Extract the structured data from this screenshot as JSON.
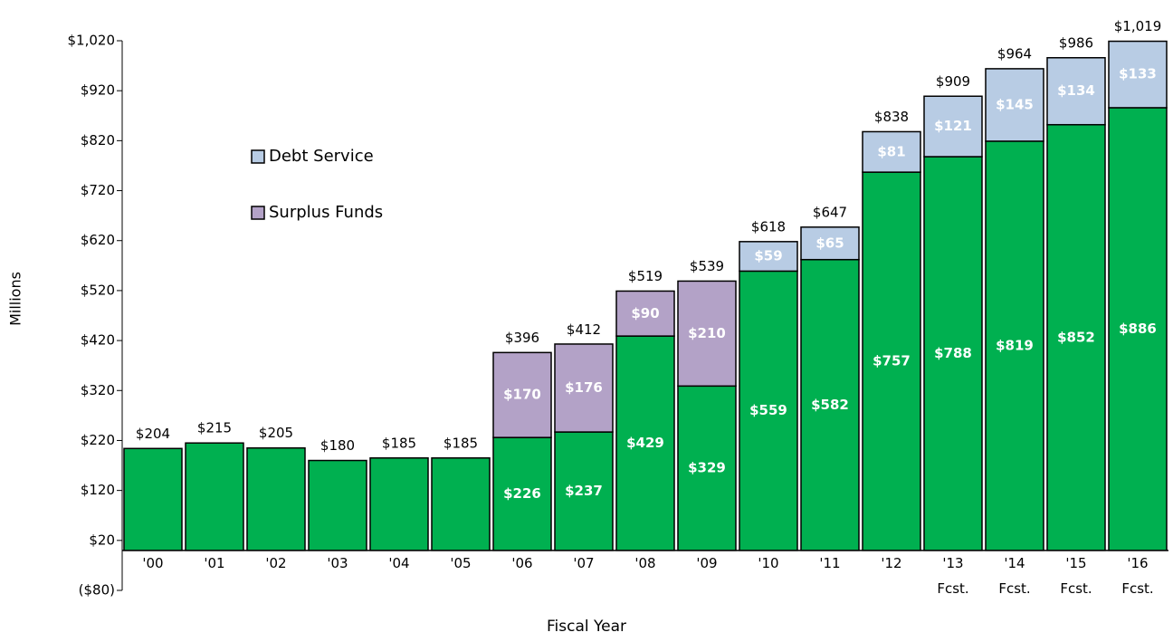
{
  "chart_data": {
    "type": "stacked_bar",
    "xlabel": "Fiscal Year",
    "ylabel": "Millions",
    "categories": [
      "'00",
      "'01",
      "'02",
      "'03",
      "'04",
      "'05",
      "'06",
      "'07",
      "'08",
      "'09",
      "'10",
      "'11",
      "'12",
      "'13\nFcst.",
      "'14\nFcst.",
      "'15\nFcst.",
      "'16\nFcst."
    ],
    "series": [
      {
        "color": "#00b050",
        "values": [
          204,
          215,
          205,
          180,
          185,
          185,
          226,
          237,
          429,
          329,
          559,
          582,
          757,
          788,
          819,
          852,
          886
        ],
        "value_labels": [
          null,
          null,
          null,
          null,
          null,
          null,
          "$226",
          "$237",
          "$429",
          "$329",
          "$559",
          "$582",
          "$757",
          "$788",
          "$819",
          "$852",
          "$886"
        ]
      },
      {
        "name": "Surplus Funds",
        "color": "#b3a2c7",
        "values": [
          null,
          null,
          null,
          null,
          null,
          null,
          170,
          176,
          90,
          210,
          null,
          null,
          null,
          null,
          null,
          null,
          null
        ],
        "value_labels": [
          null,
          null,
          null,
          null,
          null,
          null,
          "$170",
          "$176",
          "$90",
          "$210",
          null,
          null,
          null,
          null,
          null,
          null,
          null
        ]
      },
      {
        "name": "Debt Service",
        "color": "#b8cce4",
        "values": [
          null,
          null,
          null,
          null,
          null,
          null,
          null,
          null,
          null,
          null,
          59,
          65,
          81,
          121,
          145,
          134,
          133
        ],
        "value_labels": [
          null,
          null,
          null,
          null,
          null,
          null,
          null,
          null,
          null,
          null,
          "$59",
          "$65",
          "$81",
          "$121",
          "$145",
          "$134",
          "$133"
        ]
      }
    ],
    "totals": [
      204,
      215,
      205,
      180,
      185,
      185,
      396,
      412,
      519,
      539,
      618,
      647,
      838,
      909,
      964,
      986,
      1019
    ],
    "total_labels": [
      "$204",
      "$215",
      "$205",
      "$180",
      "$185",
      "$185",
      "$396",
      "$412",
      "$519",
      "$539",
      "$618",
      "$647",
      "$838",
      "$909",
      "$964",
      "$986",
      "$1,019"
    ],
    "ylim": [
      -80,
      1020
    ],
    "yticks": [
      {
        "value": -80,
        "label": "($80)"
      },
      {
        "value": 20,
        "label": "$20"
      },
      {
        "value": 120,
        "label": "$120"
      },
      {
        "value": 220,
        "label": "$220"
      },
      {
        "value": 320,
        "label": "$320"
      },
      {
        "value": 420,
        "label": "$420"
      },
      {
        "value": 520,
        "label": "$520"
      },
      {
        "value": 620,
        "label": "$620"
      },
      {
        "value": 720,
        "label": "$720"
      },
      {
        "value": 820,
        "label": "$820"
      },
      {
        "value": 920,
        "label": "$920"
      },
      {
        "value": 1020,
        "label": "$1,020"
      }
    ],
    "legend": "upper left"
  }
}
